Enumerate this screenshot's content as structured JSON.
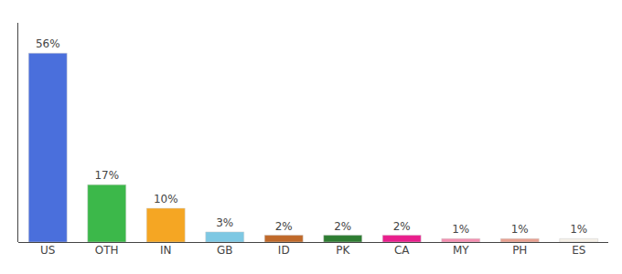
{
  "chart_data": {
    "type": "bar",
    "categories": [
      "US",
      "OTH",
      "IN",
      "GB",
      "ID",
      "PK",
      "CA",
      "MY",
      "PH",
      "ES"
    ],
    "values": [
      56,
      17,
      10,
      3,
      2,
      2,
      2,
      1,
      1,
      1
    ],
    "value_labels": [
      "56%",
      "17%",
      "10%",
      "3%",
      "2%",
      "2%",
      "2%",
      "1%",
      "1%",
      "1%"
    ],
    "colors": [
      "#4a6fdc",
      "#3cb84a",
      "#f5a623",
      "#7ec8e3",
      "#c0692a",
      "#2e7d32",
      "#e91e8c",
      "#f48fb1",
      "#e8a090",
      "#f5f0e8"
    ],
    "ylim": [
      0,
      65
    ],
    "data_labels": true,
    "tick_labels": "x",
    "grid": false
  }
}
